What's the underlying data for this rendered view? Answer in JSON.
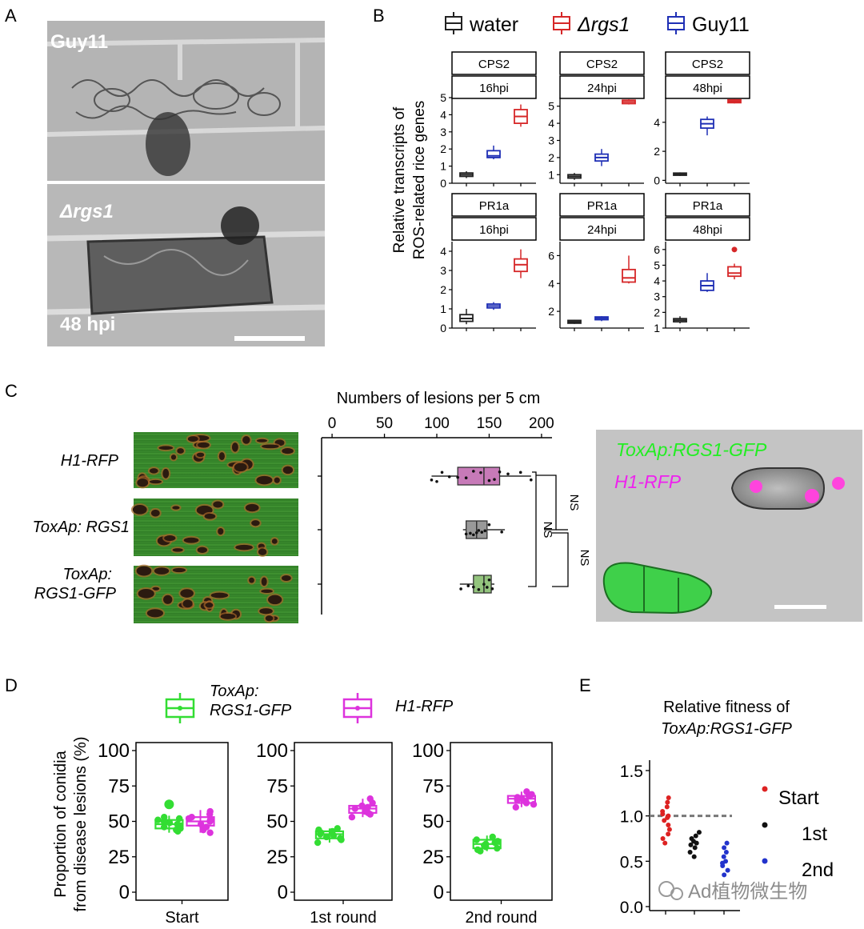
{
  "panels": {
    "A": {
      "letter": "A",
      "top_label": "Guy11",
      "bottom_label": "Δrgs1",
      "time_label": "48 hpi"
    },
    "B": {
      "letter": "B",
      "ylabel_line1": "Relative transcripts of",
      "ylabel_line2": "ROS-related rice genes",
      "legend": [
        {
          "label": "water",
          "color": "#222222"
        },
        {
          "label": "Δrgs1",
          "color": "#d62728"
        },
        {
          "label": "Guy11",
          "color": "#1f2fb5"
        }
      ]
    },
    "C": {
      "letter": "C",
      "title": "Numbers of lesions per 5 cm",
      "strains": [
        "H1-RFP",
        "ToxAp: RGS1",
        "ToxAp:",
        "RGS1-GFP"
      ],
      "ns_labels": [
        "NS",
        "NS",
        "NS"
      ],
      "micro_labels": [
        "ToxAp:RGS1-GFP",
        "H1-RFP"
      ]
    },
    "D": {
      "letter": "D",
      "ylabel_line1": "Proportion of conidia",
      "ylabel_line2": "from disease lesions (%)",
      "legend": [
        {
          "label1": "ToxAp:",
          "label2": "RGS1-GFP",
          "color": "#33dd33"
        },
        {
          "label1": "H1-RFP",
          "label2": "",
          "color": "#dd33dd"
        }
      ]
    },
    "E": {
      "letter": "E",
      "title_line1": "Relative fitness of",
      "title_line2": "ToxAp:RGS1-GFP",
      "legend": [
        {
          "label": "Start",
          "color": "#dd2222"
        },
        {
          "label": "1st",
          "color": "#111111"
        },
        {
          "label": "2nd",
          "color": "#2233cc"
        }
      ]
    }
  },
  "watermark": "Ad植物微生物",
  "chart_data": [
    {
      "type": "box",
      "id": "B",
      "groups": [
        "water",
        "Guy11",
        "Δrgs1"
      ],
      "colors": {
        "water": "#222222",
        "Guy11": "#1f2fb5",
        "Δrgs1": "#d62728"
      },
      "facets": [
        {
          "gene": "CPS2",
          "time": "16hpi",
          "ylim": [
            0,
            5
          ],
          "ticks": [
            0,
            1,
            2,
            3,
            4,
            5
          ],
          "boxes": [
            {
              "group": "water",
              "min": 0.3,
              "q1": 0.4,
              "median": 0.5,
              "q3": 0.6,
              "max": 0.7
            },
            {
              "group": "Guy11",
              "min": 1.4,
              "q1": 1.5,
              "median": 1.6,
              "q3": 1.9,
              "max": 2.2
            },
            {
              "group": "Δrgs1",
              "min": 3.3,
              "q1": 3.5,
              "median": 3.9,
              "q3": 4.3,
              "max": 4.6
            }
          ]
        },
        {
          "gene": "CPS2",
          "time": "24hpi",
          "ylim": [
            0.5,
            5.5
          ],
          "ticks": [
            1,
            2,
            3,
            4,
            5
          ],
          "boxes": [
            {
              "group": "water",
              "min": 0.7,
              "q1": 0.8,
              "median": 0.9,
              "q3": 1.0,
              "max": 1.1
            },
            {
              "group": "Guy11",
              "min": 1.5,
              "q1": 1.8,
              "median": 2.0,
              "q3": 2.2,
              "max": 2.5
            },
            {
              "group": "Δrgs1",
              "min": 5.1,
              "q1": 5.15,
              "median": 5.25,
              "q3": 5.35,
              "max": 5.4
            }
          ]
        },
        {
          "gene": "CPS2",
          "time": "48hpi",
          "ylim": [
            -0.2,
            5.7
          ],
          "ticks": [
            0,
            2,
            4
          ],
          "boxes": [
            {
              "group": "water",
              "min": 0.3,
              "q1": 0.35,
              "median": 0.42,
              "q3": 0.5,
              "max": 0.55
            },
            {
              "group": "Guy11",
              "min": 3.1,
              "q1": 3.6,
              "median": 3.9,
              "q3": 4.2,
              "max": 4.4
            },
            {
              "group": "Δrgs1",
              "min": 5.3,
              "q1": 5.35,
              "median": 5.45,
              "q3": 5.55,
              "max": 5.6
            }
          ]
        },
        {
          "gene": "PR1a",
          "time": "16hpi",
          "ylim": [
            0,
            4.5
          ],
          "ticks": [
            0,
            1,
            2,
            3,
            4
          ],
          "boxes": [
            {
              "group": "water",
              "min": 0.2,
              "q1": 0.35,
              "median": 0.5,
              "q3": 0.7,
              "max": 1.0
            },
            {
              "group": "Guy11",
              "min": 0.95,
              "q1": 1.05,
              "median": 1.15,
              "q3": 1.25,
              "max": 1.35
            },
            {
              "group": "Δrgs1",
              "min": 2.6,
              "q1": 2.95,
              "median": 3.3,
              "q3": 3.6,
              "max": 4.1
            }
          ]
        },
        {
          "gene": "PR1a",
          "time": "24hpi",
          "ylim": [
            0.8,
            7.0
          ],
          "ticks": [
            2,
            4,
            6
          ],
          "boxes": [
            {
              "group": "water",
              "min": 1.1,
              "q1": 1.15,
              "median": 1.25,
              "q3": 1.35,
              "max": 1.4
            },
            {
              "group": "Guy11",
              "min": 1.3,
              "q1": 1.4,
              "median": 1.5,
              "q3": 1.6,
              "max": 1.65
            },
            {
              "group": "Δrgs1",
              "min": 4.0,
              "q1": 4.1,
              "median": 4.4,
              "q3": 5.0,
              "max": 6.0
            }
          ]
        },
        {
          "gene": "PR1a",
          "time": "48hpi",
          "ylim": [
            1,
            6.5
          ],
          "ticks": [
            1,
            2,
            3,
            4,
            5,
            6
          ],
          "boxes": [
            {
              "group": "water",
              "min": 1.3,
              "q1": 1.4,
              "median": 1.5,
              "q3": 1.6,
              "max": 1.75
            },
            {
              "group": "Guy11",
              "min": 3.3,
              "q1": 3.4,
              "median": 3.7,
              "q3": 4.0,
              "max": 4.5
            },
            {
              "group": "Δrgs1",
              "min": 4.1,
              "q1": 4.3,
              "median": 4.5,
              "q3": 4.9,
              "max": 5.1,
              "outliers": [
                6.0
              ]
            }
          ]
        }
      ]
    },
    {
      "type": "box",
      "id": "C",
      "orientation": "horizontal",
      "title": "Numbers of lesions per 5 cm",
      "xlim": [
        -10,
        210
      ],
      "ticks": [
        0,
        50,
        100,
        150,
        200
      ],
      "boxes": [
        {
          "group": "H1-RFP",
          "color": "#c77ab8",
          "min": 95,
          "q1": 120,
          "median": 145,
          "q3": 160,
          "max": 190,
          "points": [
            95,
            100,
            105,
            112,
            120,
            128,
            135,
            142,
            150,
            155,
            160,
            168,
            180,
            190
          ]
        },
        {
          "group": "ToxAp: RGS1",
          "color": "#999999",
          "min": 125,
          "q1": 128,
          "median": 138,
          "q3": 148,
          "max": 165,
          "points": [
            128,
            132,
            135,
            138,
            140,
            143,
            146,
            150,
            162
          ]
        },
        {
          "group": "ToxAp: RGS1-GFP",
          "color": "#93c47d",
          "min": 122,
          "q1": 135,
          "median": 145,
          "q3": 152,
          "max": 155,
          "points": [
            123,
            130,
            135,
            140,
            145,
            148,
            150,
            153
          ]
        }
      ]
    },
    {
      "type": "box",
      "id": "D",
      "ylim": [
        0,
        100
      ],
      "ticks": [
        0,
        25,
        50,
        75,
        100
      ],
      "facets": [
        {
          "x_label": "Start",
          "boxes": [
            {
              "group": "ToxAp:RGS1-GFP",
              "color": "#33dd33",
              "min": 42,
              "q1": 45,
              "median": 48,
              "q3": 51,
              "max": 54,
              "outliers": [
                62
              ],
              "points": [
                43,
                44,
                45,
                46,
                47,
                48,
                49,
                50,
                51,
                52,
                53
              ]
            },
            {
              "group": "H1-RFP",
              "color": "#dd33dd",
              "min": 42,
              "q1": 47,
              "median": 50,
              "q3": 53,
              "max": 58,
              "points": [
                42,
                44,
                46,
                48,
                50,
                51,
                52,
                53,
                55,
                57
              ]
            }
          ]
        },
        {
          "x_label": "1st round",
          "boxes": [
            {
              "group": "ToxAp:RGS1-GFP",
              "color": "#33dd33",
              "min": 35,
              "q1": 38,
              "median": 41,
              "q3": 43,
              "max": 45,
              "points": [
                35,
                37,
                38,
                39,
                40,
                41,
                42,
                43,
                44,
                45
              ]
            },
            {
              "group": "H1-RFP",
              "color": "#dd33dd",
              "min": 53,
              "q1": 56,
              "median": 59,
              "q3": 61,
              "max": 66,
              "points": [
                53,
                55,
                56,
                57,
                58,
                59,
                60,
                61,
                63,
                66
              ]
            }
          ]
        },
        {
          "x_label": "2nd round",
          "boxes": [
            {
              "group": "ToxAp:RGS1-GFP",
              "color": "#33dd33",
              "min": 29,
              "q1": 31,
              "median": 34,
              "q3": 37,
              "max": 40,
              "points": [
                29,
                30,
                31,
                32,
                33,
                34,
                35,
                36,
                37,
                39
              ]
            },
            {
              "group": "H1-RFP",
              "color": "#dd33dd",
              "min": 60,
              "q1": 63,
              "median": 66,
              "q3": 68,
              "max": 71,
              "points": [
                60,
                62,
                63,
                64,
                65,
                66,
                67,
                68,
                69,
                71
              ]
            }
          ]
        }
      ]
    },
    {
      "type": "scatter",
      "id": "E",
      "ylim": [
        0,
        1.5
      ],
      "ticks": [
        0.0,
        0.5,
        1.0,
        1.5
      ],
      "reference_line": 1.0,
      "series": [
        {
          "name": "Start",
          "color": "#dd2222",
          "values": [
            0.7,
            0.75,
            0.8,
            0.85,
            0.9,
            0.95,
            0.98,
            1.0,
            1.02,
            1.05,
            1.1,
            1.15,
            1.2
          ]
        },
        {
          "name": "1st",
          "color": "#111111",
          "values": [
            0.55,
            0.6,
            0.65,
            0.68,
            0.7,
            0.72,
            0.75,
            0.78,
            0.82
          ]
        },
        {
          "name": "2nd",
          "color": "#2233cc",
          "values": [
            0.35,
            0.4,
            0.45,
            0.48,
            0.5,
            0.55,
            0.6,
            0.65,
            0.7
          ]
        }
      ]
    }
  ]
}
